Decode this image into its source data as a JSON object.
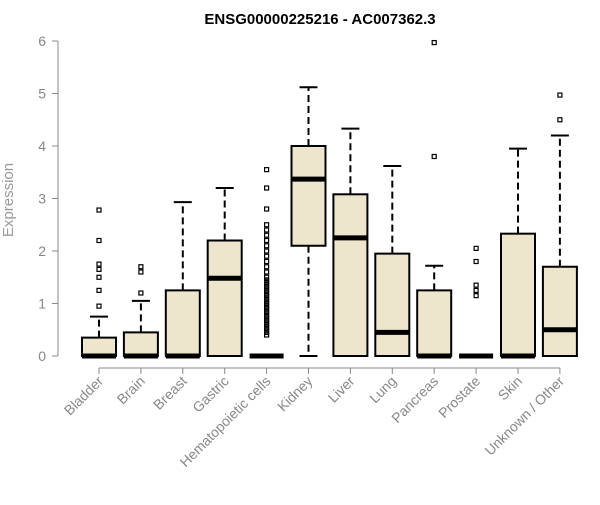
{
  "chart_data": {
    "type": "box",
    "title": "ENSG00000225216 - AC007362.3",
    "xlabel": "",
    "ylabel": "Expression",
    "ylim": [
      0,
      6
    ],
    "yticks": [
      0,
      1,
      2,
      3,
      4,
      5,
      6
    ],
    "grid": false,
    "box_fill": "#ede6cd",
    "categories": [
      "Bladder",
      "Brain",
      "Breast",
      "Gastric",
      "Hematopoietic cells",
      "Kidney",
      "Liver",
      "Lung",
      "Pancreas",
      "Prostate",
      "Skin",
      "Unknown / Other"
    ],
    "boxes": [
      {
        "category": "Bladder",
        "whisker_low": 0,
        "q1": 0,
        "median": 0,
        "q3": 0.35,
        "whisker_high": 0.75,
        "outliers": [
          0.95,
          1.25,
          1.5,
          1.65,
          1.75,
          2.2,
          2.78
        ]
      },
      {
        "category": "Brain",
        "whisker_low": 0,
        "q1": 0,
        "median": 0,
        "q3": 0.45,
        "whisker_high": 1.05,
        "outliers": [
          1.2,
          1.6,
          1.7
        ]
      },
      {
        "category": "Breast",
        "whisker_low": 0,
        "q1": 0,
        "median": 0,
        "q3": 1.25,
        "whisker_high": 2.93,
        "outliers": []
      },
      {
        "category": "Gastric",
        "whisker_low": 0,
        "q1": 0,
        "median": 1.48,
        "q3": 2.2,
        "whisker_high": 3.2,
        "outliers": []
      },
      {
        "category": "Hematopoietic cells",
        "whisker_low": 0,
        "q1": 0,
        "median": 0,
        "q3": 0,
        "whisker_high": 0,
        "outliers": [
          0.4,
          0.45,
          0.5,
          0.55,
          0.6,
          0.65,
          0.7,
          0.75,
          0.8,
          0.85,
          0.9,
          0.95,
          1.0,
          1.05,
          1.1,
          1.15,
          1.2,
          1.25,
          1.3,
          1.35,
          1.4,
          1.45,
          1.5,
          1.6,
          1.7,
          1.8,
          1.9,
          2.0,
          2.1,
          2.2,
          2.3,
          2.4,
          2.5,
          2.8,
          3.2,
          3.55
        ]
      },
      {
        "category": "Kidney",
        "whisker_low": 0,
        "q1": 2.1,
        "median": 3.37,
        "q3": 4.0,
        "whisker_high": 5.12,
        "outliers": []
      },
      {
        "category": "Liver",
        "whisker_low": 0,
        "q1": 0,
        "median": 2.25,
        "q3": 3.08,
        "whisker_high": 4.33,
        "outliers": []
      },
      {
        "category": "Lung",
        "whisker_low": 0,
        "q1": 0,
        "median": 0.45,
        "q3": 1.95,
        "whisker_high": 3.62,
        "outliers": []
      },
      {
        "category": "Pancreas",
        "whisker_low": 0,
        "q1": 0,
        "median": 0,
        "q3": 1.25,
        "whisker_high": 1.72,
        "outliers": [
          3.8,
          5.97
        ]
      },
      {
        "category": "Prostate",
        "whisker_low": 0,
        "q1": 0,
        "median": 0,
        "q3": 0,
        "whisker_high": 0,
        "outliers": [
          1.15,
          1.25,
          1.35,
          1.8,
          2.05
        ]
      },
      {
        "category": "Skin",
        "whisker_low": 0,
        "q1": 0,
        "median": 0,
        "q3": 2.33,
        "whisker_high": 3.95,
        "outliers": []
      },
      {
        "category": "Unknown / Other",
        "whisker_low": 0,
        "q1": 0,
        "median": 0.5,
        "q3": 1.7,
        "whisker_high": 4.2,
        "outliers": [
          4.5,
          4.97
        ]
      }
    ]
  }
}
